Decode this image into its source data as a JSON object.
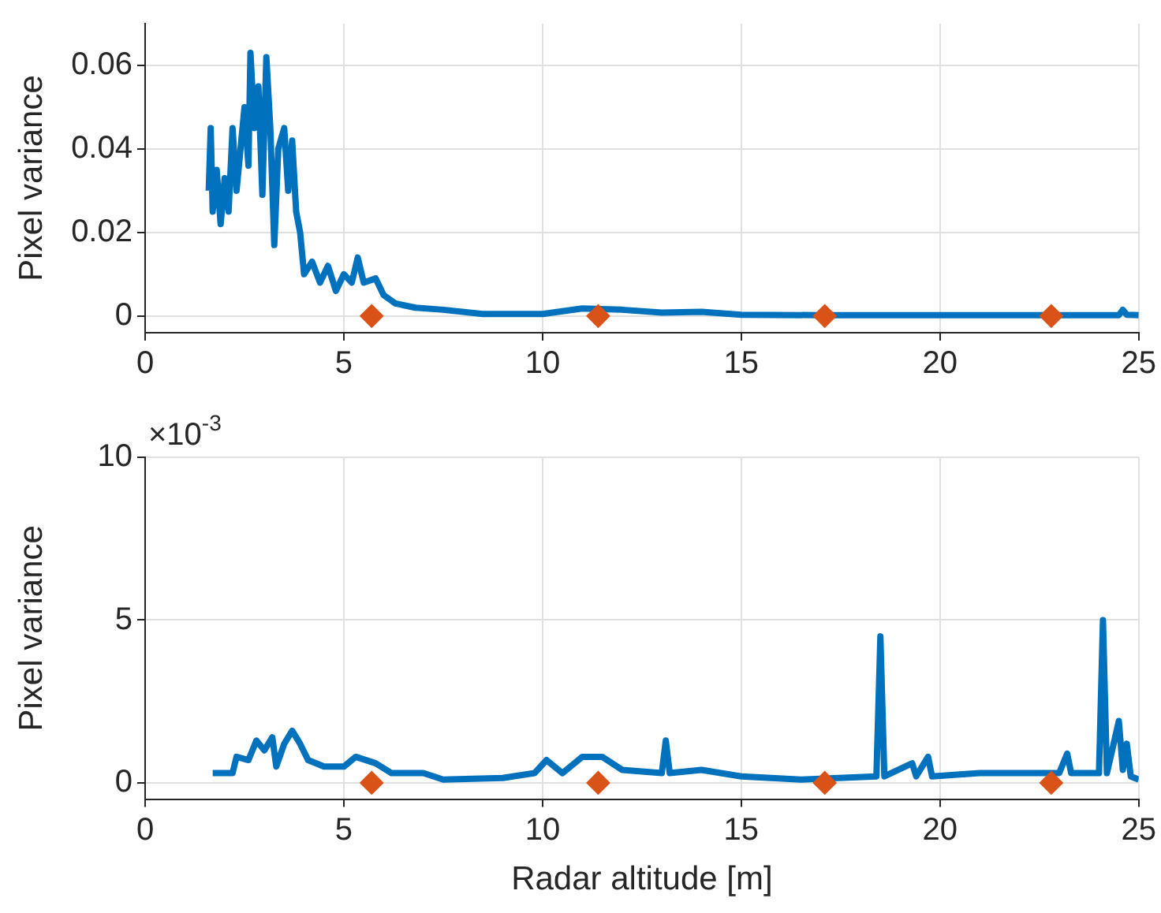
{
  "chart_data": [
    {
      "type": "line",
      "ylabel": "Pixel variance",
      "xlim": [
        0,
        25
      ],
      "xticks": [
        0,
        5,
        10,
        15,
        20,
        25
      ],
      "ylim": [
        -0.004,
        0.07
      ],
      "yticks": [
        0,
        0.02,
        0.04,
        0.06
      ],
      "grid": true,
      "series": [
        {
          "type": "line",
          "color": "#0072bd",
          "marker": "none",
          "x": [
            1.6,
            1.65,
            1.7,
            1.8,
            1.9,
            2.0,
            2.1,
            2.2,
            2.3,
            2.4,
            2.5,
            2.6,
            2.65,
            2.75,
            2.85,
            2.95,
            3.05,
            3.15,
            3.25,
            3.35,
            3.5,
            3.6,
            3.7,
            3.8,
            3.9,
            4.0,
            4.2,
            4.4,
            4.6,
            4.8,
            5.0,
            5.2,
            5.35,
            5.5,
            5.8,
            6.0,
            6.3,
            6.8,
            7.5,
            8.5,
            10,
            11,
            12,
            13,
            14,
            15,
            17,
            20,
            24.5,
            24.6,
            24.7,
            25
          ],
          "values": [
            0.03,
            0.045,
            0.025,
            0.035,
            0.022,
            0.033,
            0.025,
            0.045,
            0.03,
            0.04,
            0.05,
            0.036,
            0.063,
            0.045,
            0.055,
            0.029,
            0.062,
            0.045,
            0.017,
            0.04,
            0.045,
            0.03,
            0.042,
            0.025,
            0.02,
            0.01,
            0.013,
            0.008,
            0.012,
            0.006,
            0.01,
            0.008,
            0.014,
            0.008,
            0.009,
            0.005,
            0.003,
            0.002,
            0.0015,
            0.0005,
            0.0005,
            0.0018,
            0.0015,
            0.0008,
            0.001,
            0.0003,
            0.0002,
            0.0002,
            0.0002,
            0.0015,
            0.0003,
            0.0002
          ]
        },
        {
          "type": "scatter",
          "color": "#d95319",
          "marker": "diamond",
          "x": [
            5.7,
            11.4,
            17.1,
            22.8
          ],
          "values": [
            0,
            0,
            0,
            0
          ]
        }
      ]
    },
    {
      "type": "line",
      "ylabel": "Pixel variance",
      "xlabel": "Radar altitude [m]",
      "xlim": [
        0,
        25
      ],
      "xticks": [
        0,
        5,
        10,
        15,
        20,
        25
      ],
      "ylim": [
        -0.5,
        10
      ],
      "yticks": [
        0,
        5,
        10
      ],
      "grid": true,
      "annotations": [
        "×10$^{-3}$"
      ],
      "series": [
        {
          "type": "line",
          "color": "#0072bd",
          "marker": "none",
          "x": [
            1.7,
            2.2,
            2.3,
            2.6,
            2.8,
            3.0,
            3.2,
            3.3,
            3.5,
            3.7,
            3.9,
            4.1,
            4.5,
            5.0,
            5.3,
            5.8,
            6.2,
            7,
            7.5,
            9,
            9.8,
            10.1,
            10.5,
            11,
            11.5,
            12,
            13,
            13.1,
            13.2,
            14,
            15,
            16.5,
            18.4,
            18.5,
            18.6,
            19.3,
            19.4,
            19.7,
            19.8,
            21,
            23,
            23.2,
            23.3,
            24.0,
            24.1,
            24.2,
            24.5,
            24.6,
            24.7,
            24.8,
            25
          ],
          "values": [
            0.3,
            0.3,
            0.8,
            0.7,
            1.3,
            1.0,
            1.4,
            0.5,
            1.2,
            1.6,
            1.2,
            0.7,
            0.5,
            0.5,
            0.8,
            0.6,
            0.3,
            0.3,
            0.1,
            0.15,
            0.3,
            0.7,
            0.3,
            0.8,
            0.8,
            0.4,
            0.3,
            1.3,
            0.3,
            0.4,
            0.2,
            0.1,
            0.2,
            4.5,
            0.2,
            0.6,
            0.2,
            0.8,
            0.2,
            0.3,
            0.3,
            0.9,
            0.3,
            0.3,
            5.0,
            0.3,
            1.9,
            0.4,
            1.2,
            0.2,
            0.1
          ]
        },
        {
          "type": "scatter",
          "color": "#d95319",
          "marker": "diamond",
          "x": [
            5.7,
            11.4,
            17.1,
            22.8
          ],
          "values": [
            0,
            0,
            0,
            0
          ]
        }
      ]
    }
  ]
}
